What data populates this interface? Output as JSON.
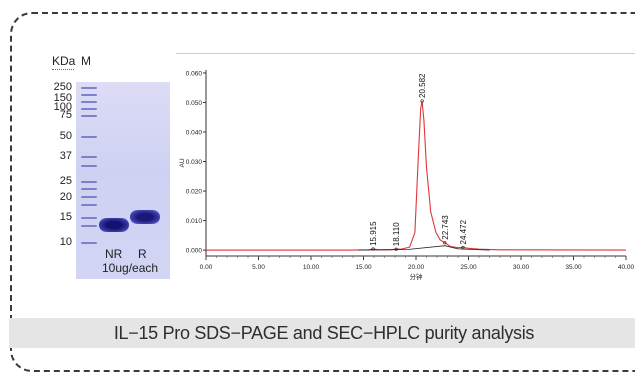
{
  "gel": {
    "unit_label": "KDa",
    "marker_lane_label": "M",
    "markers": [
      "250",
      "150",
      "100",
      "75",
      "50",
      "37",
      "25",
      "20",
      "15",
      "10"
    ],
    "lanes": [
      "NR",
      "R"
    ],
    "load_note": "10ug/each"
  },
  "chart_data": {
    "type": "line",
    "xlabel": "分钟",
    "ylabel": "AU",
    "xlim": [
      0,
      40
    ],
    "ylim": [
      -0.002,
      0.061
    ],
    "x_ticks": [
      "0.00",
      "5.00",
      "10.00",
      "15.00",
      "20.00",
      "25.00",
      "30.00",
      "35.00",
      "40.00"
    ],
    "y_ticks": [
      "0.000",
      "0.010",
      "0.020",
      "0.030",
      "0.040",
      "0.050",
      "0.060"
    ],
    "series": [
      {
        "color": "#e0353a",
        "x": [
          0,
          14,
          15.5,
          15.915,
          16.4,
          17.6,
          18.11,
          18.6,
          19.4,
          19.9,
          20.2,
          20.45,
          20.582,
          20.75,
          21.0,
          21.4,
          21.9,
          22.3,
          22.743,
          23.3,
          24.0,
          24.472,
          25.0,
          26.0,
          28.0,
          40.0
        ],
        "y": [
          0.0,
          0.0,
          0.0001,
          0.0004,
          0.0001,
          0.0001,
          0.0003,
          0.0003,
          0.001,
          0.006,
          0.03,
          0.048,
          0.0505,
          0.044,
          0.028,
          0.013,
          0.006,
          0.0035,
          0.0025,
          0.0012,
          0.0008,
          0.0009,
          0.0006,
          0.0003,
          0.0001,
          0.0
        ]
      },
      {
        "color": "#222222",
        "x": [
          14.5,
          19.2,
          22.743,
          24.0,
          27.0
        ],
        "y": [
          0.0,
          0.0002,
          0.0015,
          0.0004,
          0.0
        ]
      }
    ],
    "peaks": [
      {
        "label": "15.915",
        "x": 15.915,
        "y": 0.0004
      },
      {
        "label": "18.110",
        "x": 18.11,
        "y": 0.0003
      },
      {
        "label": "20.582",
        "x": 20.582,
        "y": 0.0505
      },
      {
        "label": "22.743",
        "x": 22.743,
        "y": 0.0025
      },
      {
        "label": "24.472",
        "x": 24.472,
        "y": 0.0009
      }
    ]
  },
  "caption": "IL−15 Pro SDS−PAGE and SEC−HPLC purity analysis"
}
